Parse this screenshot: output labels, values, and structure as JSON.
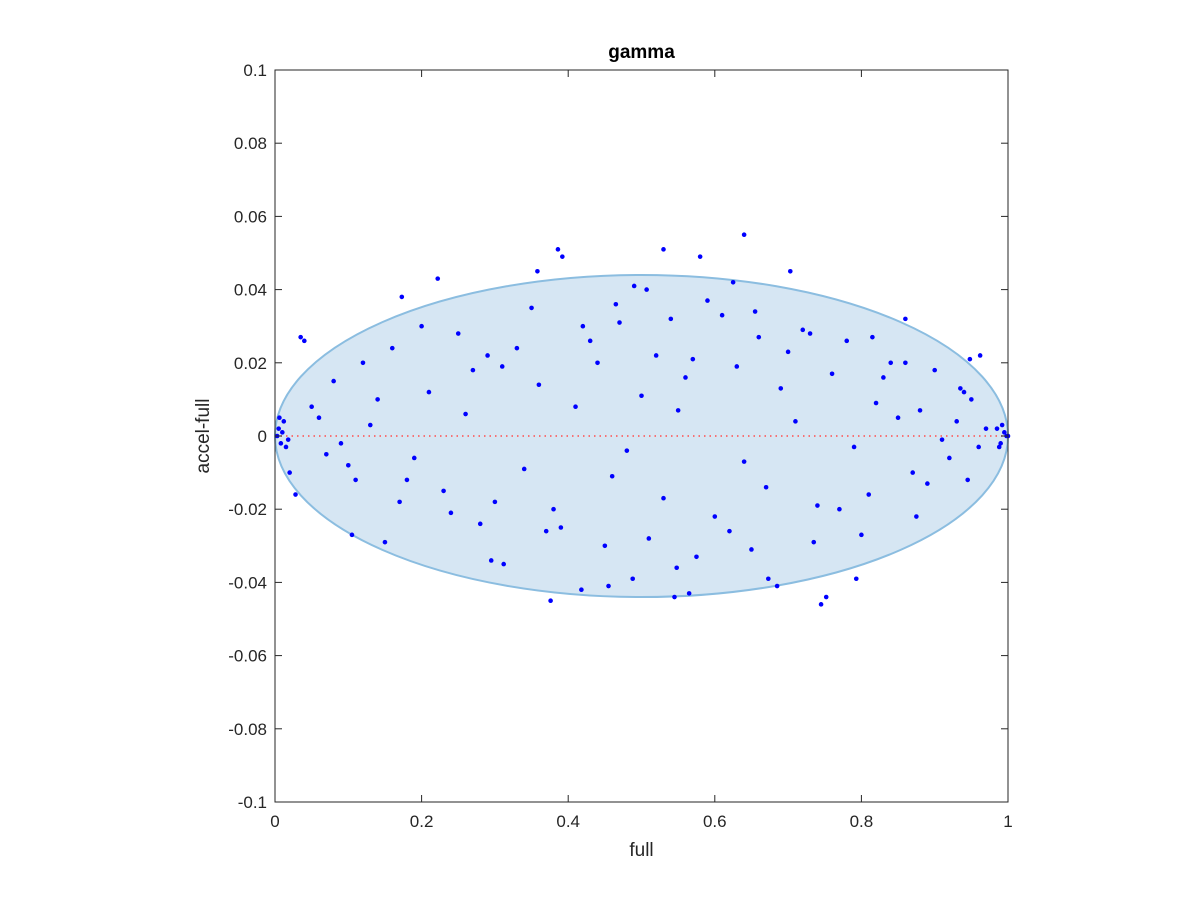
{
  "chart_data": {
    "type": "scatter",
    "title": "gamma",
    "xlabel": "full",
    "ylabel": "accel-full",
    "xlim": [
      0,
      1
    ],
    "ylim": [
      -0.1,
      0.1
    ],
    "x_ticks": [
      0,
      0.2,
      0.4,
      0.6,
      0.8,
      1
    ],
    "x_tick_labels": [
      "0",
      "0.2",
      "0.4",
      "0.6",
      "0.8",
      "1"
    ],
    "y_ticks": [
      -0.1,
      -0.08,
      -0.06,
      -0.04,
      -0.02,
      0,
      0.02,
      0.04,
      0.06,
      0.08,
      0.1
    ],
    "y_tick_labels": [
      "-0.1",
      "-0.08",
      "-0.06",
      "-0.04",
      "-0.02",
      "0",
      "0.02",
      "0.04",
      "0.06",
      "0.08",
      "0.1"
    ],
    "grid": false,
    "box": true,
    "reference_line": {
      "y": 0,
      "x_from": 0,
      "x_to": 1,
      "style": "dotted",
      "color": "#ff4d4d"
    },
    "region": {
      "shape": "ellipse",
      "center": [
        0.5,
        0
      ],
      "x_half_width": 0.5,
      "y_half_height": 0.044,
      "fill_color": "#d6e6f3",
      "edge_color": "#8bbde0"
    },
    "series": [
      {
        "marker": "dot",
        "color": "#0000ff",
        "x": [
          0.386,
          0.392,
          0.53,
          0.58,
          0.64,
          0.703,
          0.222,
          0.358,
          0.035,
          0.04,
          0.49,
          0.507,
          0.625,
          0.59,
          0.86,
          0.173,
          0.962,
          0.948,
          0.376,
          0.418,
          0.455,
          0.488,
          0.545,
          0.565,
          0.673,
          0.685,
          0.745,
          0.752,
          0.793,
          0.105,
          0.15,
          0.295,
          0.312,
          0.548,
          0.028,
          0.02,
          0.005,
          0.008,
          0.012,
          0.015,
          0.01,
          0.003,
          0.018,
          0.006,
          0.985,
          0.99,
          0.995,
          0.998,
          0.992,
          0.988,
          1.0,
          0.08,
          0.12,
          0.25,
          0.33,
          0.42,
          0.47,
          0.52,
          0.61,
          0.66,
          0.72,
          0.78,
          0.84,
          0.9,
          0.94,
          0.06,
          0.14,
          0.21,
          0.27,
          0.36,
          0.44,
          0.5,
          0.56,
          0.63,
          0.69,
          0.76,
          0.82,
          0.88,
          0.93,
          0.07,
          0.1,
          0.18,
          0.23,
          0.3,
          0.38,
          0.46,
          0.53,
          0.6,
          0.67,
          0.74,
          0.81,
          0.87,
          0.92,
          0.96,
          0.05,
          0.11,
          0.16,
          0.24,
          0.31,
          0.39,
          0.43,
          0.51,
          0.57,
          0.62,
          0.7,
          0.77,
          0.83,
          0.89,
          0.95,
          0.09,
          0.13,
          0.19,
          0.26,
          0.34,
          0.41,
          0.48,
          0.55,
          0.64,
          0.71,
          0.79,
          0.85,
          0.91,
          0.97,
          0.2,
          0.28,
          0.35,
          0.45,
          0.54,
          0.65,
          0.73,
          0.8,
          0.86,
          0.945,
          0.17,
          0.29,
          0.37,
          0.465,
          0.575,
          0.655,
          0.735,
          0.815,
          0.875,
          0.935
        ],
        "y": [
          0.051,
          0.049,
          0.051,
          0.049,
          0.055,
          0.045,
          0.043,
          0.045,
          0.027,
          0.026,
          0.041,
          0.04,
          0.042,
          0.037,
          0.032,
          0.038,
          0.022,
          0.021,
          -0.045,
          -0.042,
          -0.041,
          -0.039,
          -0.044,
          -0.043,
          -0.039,
          -0.041,
          -0.046,
          -0.044,
          -0.039,
          -0.027,
          -0.029,
          -0.034,
          -0.035,
          -0.036,
          -0.016,
          -0.01,
          0.002,
          -0.002,
          0.004,
          -0.003,
          0.001,
          0.0,
          -0.001,
          0.005,
          0.002,
          -0.002,
          0.001,
          0.0,
          0.003,
          -0.003,
          0.0,
          0.015,
          0.02,
          0.028,
          0.024,
          0.03,
          0.031,
          0.022,
          0.033,
          0.027,
          0.029,
          0.026,
          0.02,
          0.018,
          0.012,
          0.005,
          0.01,
          0.012,
          0.018,
          0.014,
          0.02,
          0.011,
          0.016,
          0.019,
          0.013,
          0.017,
          0.009,
          0.007,
          0.004,
          -0.005,
          -0.008,
          -0.012,
          -0.015,
          -0.018,
          -0.02,
          -0.011,
          -0.017,
          -0.022,
          -0.014,
          -0.019,
          -0.016,
          -0.01,
          -0.006,
          -0.003,
          0.008,
          -0.012,
          0.024,
          -0.021,
          0.019,
          -0.025,
          0.026,
          -0.028,
          0.021,
          -0.026,
          0.023,
          -0.02,
          0.016,
          -0.013,
          0.01,
          -0.002,
          0.003,
          -0.006,
          0.006,
          -0.009,
          0.008,
          -0.004,
          0.007,
          -0.007,
          0.004,
          -0.003,
          0.005,
          -0.001,
          0.002,
          0.03,
          -0.024,
          0.035,
          -0.03,
          0.032,
          -0.031,
          0.028,
          -0.027,
          0.02,
          -0.012,
          -0.018,
          0.022,
          -0.026,
          0.036,
          -0.033,
          0.034,
          -0.029,
          0.027,
          -0.022,
          0.013
        ]
      }
    ]
  }
}
